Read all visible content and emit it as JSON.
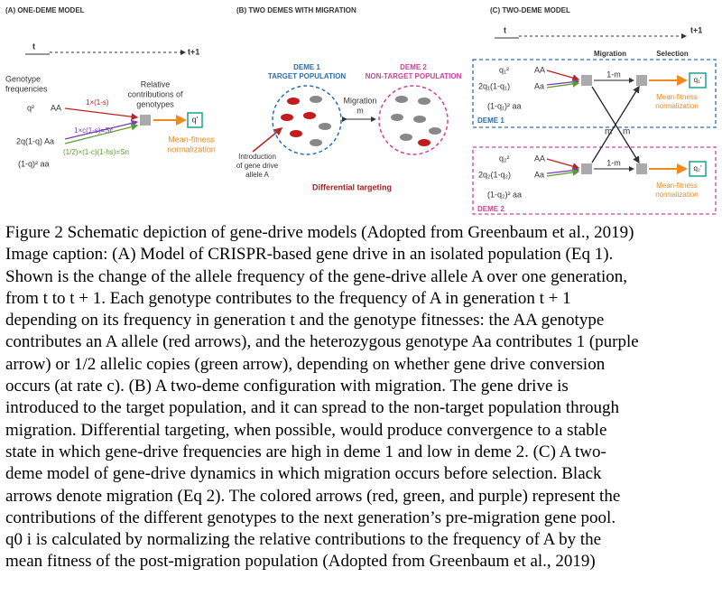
{
  "figure": {
    "panel_a": {
      "title": "(A) ONE-DEME MODEL",
      "t": "t",
      "t1": "t+1",
      "genotype_label": [
        "Genotype",
        "frequencies"
      ],
      "contrib_label": [
        "Relative",
        "contributions of",
        "genotypes"
      ],
      "q2": "q²",
      "aa_big": "AA",
      "het": "2q(1-q)  Aa",
      "hom": "(1-q)²  aa",
      "red_label": "1×(1-s)",
      "purple_label": "1×c(1-s)=Sc",
      "green_label": "(1/2)×(1-c)(1-hs)=Sn",
      "q_prime": "q'",
      "norm": [
        "Mean-fitness",
        "normalization"
      ]
    },
    "panel_b": {
      "title": "(B) TWO DEMES WITH MIGRATION",
      "deme1": "DEME 1",
      "deme1_sub": "TARGET POPULATION",
      "deme2": "DEME 2",
      "deme2_sub": "NON-TARGET POPULATION",
      "migration": "Migration",
      "m": "m",
      "intro": [
        "Introduction",
        "of gene drive",
        "allele A"
      ],
      "differential": "Differential targeting"
    },
    "panel_c": {
      "title": "(C) TWO-DEME MODEL",
      "t": "t",
      "t1": "t+1",
      "migration": "Migration",
      "selection": "Selection",
      "d1": {
        "q2": "q₁²",
        "aa_big": "AA",
        "het": "2q₁(1-q₁)",
        "het_g": "Aa",
        "hom": "(1-q₁)²  aa",
        "stay": "1-m",
        "q_prime": "q₁'",
        "norm": [
          "Mean-fitness",
          "normalization"
        ],
        "deme": "DEME 1"
      },
      "d2": {
        "q2": "q₂²",
        "aa_big": "AA",
        "het": "2q₂(1-q₂)",
        "het_g": "Aa",
        "hom": "(1-q₂)²  aa",
        "stay": "1-m",
        "q_prime": "q₂'",
        "norm": [
          "Mean-fitness",
          "normalization"
        ],
        "deme": "DEME 2"
      },
      "m_left": "m",
      "m_right": "m"
    }
  },
  "caption": {
    "lines": [
      "Figure 2 Schematic depiction of gene-drive models (Adopted from Greenbaum et al., 2019)",
      "Image caption: (A) Model of CRISPR-based gene drive in an isolated population (Eq 1).",
      "Shown is the change of the allele frequency of the gene-drive allele A over one generation,",
      "from t to t + 1. Each genotype contributes to the frequency of A in generation t + 1",
      "depending on its frequency in generation t and the genotype fitnesses: the AA genotype",
      "contributes an A allele (red arrows), and the heterozygous genotype Aa contributes 1 (purple",
      "arrow) or 1/2 allelic copies (green arrow), depending on whether gene drive conversion",
      "occurs (at rate c). (B) A two-deme configuration with migration. The gene drive is",
      "introduced to the target population, and it can spread to the non-target population through",
      "migration. Differential targeting, when possible, would produce convergence to a stable",
      "state in which gene-drive frequencies are high in deme 1 and low in deme 2. (C) A two-",
      "deme model of gene-drive dynamics in which migration occurs before selection. Black",
      "arrows denote migration (Eq 2). The colored arrows (red, green, and purple) represent the",
      "contributions of the different genotypes to the next generation’s pre-migration gene pool.",
      "q0 i is calculated by normalizing the relative contributions to the frequency of A by the",
      "mean fitness of the post-migration population (Adopted from Greenbaum et al., 2019)"
    ]
  }
}
